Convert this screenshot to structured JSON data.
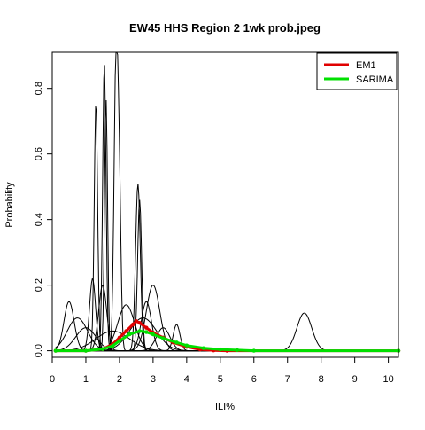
{
  "chart_data": {
    "type": "line",
    "title": "EW45 HHS Region 2 1wk prob.jpeg",
    "xlabel": "ILI%",
    "ylabel": "Probability",
    "xlim": [
      0,
      10.3
    ],
    "ylim": [
      -0.02,
      0.91
    ],
    "xticks": [
      0,
      1,
      2,
      3,
      4,
      5,
      6,
      7,
      8,
      9,
      10
    ],
    "yticks": [
      0.0,
      0.2,
      0.4,
      0.6,
      0.8
    ],
    "ytick_labels": [
      "0.0",
      "0.2",
      "0.4",
      "0.6",
      "0.8"
    ],
    "legend_position": "top-right",
    "grid": false,
    "series": [
      {
        "name": "EM1",
        "color": "#e00000",
        "x": [
          0.1,
          1.0,
          1.5,
          1.8,
          2.0,
          2.2,
          2.4,
          2.5,
          2.6,
          2.8,
          3.0,
          3.3,
          3.6,
          4.0,
          4.4,
          4.8,
          5.2,
          10.3
        ],
        "y": [
          0.0,
          0.0,
          0.005,
          0.02,
          0.04,
          0.06,
          0.08,
          0.09,
          0.085,
          0.07,
          0.055,
          0.04,
          0.025,
          0.012,
          0.004,
          0.001,
          0.0,
          0.0
        ]
      },
      {
        "name": "SARIMA",
        "color": "#00e000",
        "x": [
          0.1,
          1.0,
          1.5,
          1.8,
          2.0,
          2.3,
          2.6,
          2.8,
          3.0,
          3.3,
          3.7,
          4.0,
          4.5,
          5.0,
          5.5,
          6.0,
          10.3
        ],
        "y": [
          0.0,
          0.0,
          0.005,
          0.015,
          0.03,
          0.05,
          0.06,
          0.057,
          0.05,
          0.038,
          0.025,
          0.016,
          0.008,
          0.004,
          0.002,
          0.0,
          0.0
        ]
      }
    ],
    "background_series": [
      {
        "color": "#000000",
        "peaks": [
          [
            1.9,
            0.91,
            0.06
          ],
          [
            2.0,
            0.4,
            0.05
          ]
        ]
      },
      {
        "color": "#000000",
        "peaks": [
          [
            1.55,
            0.88,
            0.05
          ]
        ]
      },
      {
        "color": "#000000",
        "peaks": [
          [
            1.3,
            0.76,
            0.05
          ]
        ]
      },
      {
        "color": "#000000",
        "peaks": [
          [
            1.6,
            0.77,
            0.045
          ]
        ]
      },
      {
        "color": "#000000",
        "peaks": [
          [
            2.55,
            0.51,
            0.07
          ]
        ]
      },
      {
        "color": "#000000",
        "peaks": [
          [
            2.6,
            0.46,
            0.06
          ]
        ]
      },
      {
        "color": "#000000",
        "peaks": [
          [
            1.2,
            0.22,
            0.09
          ]
        ]
      },
      {
        "color": "#000000",
        "peaks": [
          [
            0.5,
            0.15,
            0.15
          ]
        ]
      },
      {
        "color": "#000000",
        "peaks": [
          [
            0.75,
            0.1,
            0.3
          ]
        ]
      },
      {
        "color": "#000000",
        "peaks": [
          [
            1.5,
            0.2,
            0.12
          ],
          [
            2.8,
            0.15,
            0.15
          ]
        ]
      },
      {
        "color": "#000000",
        "peaks": [
          [
            3.0,
            0.2,
            0.2
          ]
        ]
      },
      {
        "color": "#000000",
        "peaks": [
          [
            2.2,
            0.14,
            0.25
          ]
        ]
      },
      {
        "color": "#000000",
        "peaks": [
          [
            1.0,
            0.07,
            0.3
          ],
          [
            3.7,
            0.08,
            0.1
          ]
        ]
      },
      {
        "color": "#000000",
        "peaks": [
          [
            2.7,
            0.1,
            0.4
          ]
        ]
      },
      {
        "color": "#000000",
        "peaks": [
          [
            3.3,
            0.07,
            0.2
          ]
        ]
      },
      {
        "color": "#000000",
        "peaks": [
          [
            1.8,
            0.06,
            0.5
          ]
        ]
      },
      {
        "color": "#000000",
        "peaks": [
          [
            7.5,
            0.115,
            0.22
          ]
        ]
      }
    ]
  },
  "legend": {
    "items": [
      {
        "label": "EM1",
        "color": "#e00000"
      },
      {
        "label": "SARIMA",
        "color": "#00e000"
      }
    ]
  }
}
